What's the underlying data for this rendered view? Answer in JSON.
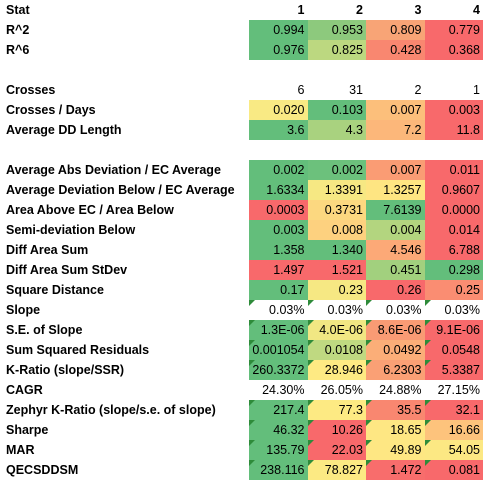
{
  "colors": {
    "green": "#6cc36f",
    "light_green": "#a6d77a",
    "yellow": "#fbe983",
    "orange": "#fbb676",
    "red": "#f8696b",
    "lt_orange": "#fdc67a"
  },
  "header": {
    "label": "Stat",
    "cols": [
      "1",
      "2",
      "3",
      "4"
    ]
  },
  "rows": [
    {
      "id": "r2",
      "label": "R^2",
      "cells": [
        {
          "v": "0.994",
          "c": "#63be7b"
        },
        {
          "v": "0.953",
          "c": "#8dc97d"
        },
        {
          "v": "0.809",
          "c": "#f8a476"
        },
        {
          "v": "0.779",
          "c": "#f8696b"
        }
      ]
    },
    {
      "id": "r6",
      "label": "R^6",
      "cells": [
        {
          "v": "0.976",
          "c": "#63be7b"
        },
        {
          "v": "0.825",
          "c": "#bcd880"
        },
        {
          "v": "0.428",
          "c": "#f98770"
        },
        {
          "v": "0.368",
          "c": "#f8696b"
        }
      ]
    },
    {
      "id": "blank1",
      "label": "",
      "cells": [
        {
          "v": ""
        },
        {
          "v": ""
        },
        {
          "v": ""
        },
        {
          "v": ""
        }
      ]
    },
    {
      "id": "crosses",
      "label": "Crosses",
      "cells": [
        {
          "v": "6"
        },
        {
          "v": "31"
        },
        {
          "v": "2"
        },
        {
          "v": "1"
        }
      ]
    },
    {
      "id": "crosses_days",
      "label": "Crosses / Days",
      "cells": [
        {
          "v": "0.020",
          "c": "#f9ea84"
        },
        {
          "v": "0.103",
          "c": "#63be7b"
        },
        {
          "v": "0.007",
          "c": "#fcbf7b"
        },
        {
          "v": "0.003",
          "c": "#f8696b"
        }
      ]
    },
    {
      "id": "avg_dd_len",
      "label": "Average DD Length",
      "cells": [
        {
          "v": "3.6",
          "c": "#63be7b"
        },
        {
          "v": "4.3",
          "c": "#a9d27f"
        },
        {
          "v": "7.2",
          "c": "#fcb77a"
        },
        {
          "v": "11.8",
          "c": "#f8696b"
        }
      ]
    },
    {
      "id": "blank2",
      "label": "",
      "cells": [
        {
          "v": ""
        },
        {
          "v": ""
        },
        {
          "v": ""
        },
        {
          "v": ""
        }
      ]
    },
    {
      "id": "avg_abs_dev",
      "label": "Average Abs Deviation  / EC Average",
      "cells": [
        {
          "v": "0.002",
          "c": "#63be7b"
        },
        {
          "v": "0.002",
          "c": "#6cc17c"
        },
        {
          "v": "0.007",
          "c": "#fa9c74"
        },
        {
          "v": "0.011",
          "c": "#f8696b"
        }
      ]
    },
    {
      "id": "avg_dev_below",
      "label": "Average Deviation Below / EC Average",
      "cells": [
        {
          "v": "1.6334",
          "c": "#63be7b"
        },
        {
          "v": "1.3391",
          "c": "#f6e883"
        },
        {
          "v": "1.3257",
          "c": "#fee582"
        },
        {
          "v": "0.9607",
          "c": "#f8696b"
        }
      ]
    },
    {
      "id": "area_ratio",
      "label": "Area Above EC / Area Below",
      "cells": [
        {
          "v": "0.0003",
          "c": "#f8696b"
        },
        {
          "v": "0.3731",
          "c": "#fcd880"
        },
        {
          "v": "7.6139",
          "c": "#63be7b"
        },
        {
          "v": "0.0000",
          "c": "#f8696b"
        }
      ]
    },
    {
      "id": "semi_dev",
      "label": "Semi-deviation Below",
      "cells": [
        {
          "v": "0.003",
          "c": "#63be7b"
        },
        {
          "v": "0.008",
          "c": "#fdd17f"
        },
        {
          "v": "0.004",
          "c": "#b3d57f"
        },
        {
          "v": "0.014",
          "c": "#f8696b"
        }
      ]
    },
    {
      "id": "diff_area",
      "label": "Diff Area Sum",
      "cells": [
        {
          "v": "1.358",
          "c": "#63be7b"
        },
        {
          "v": "1.340",
          "c": "#63be7b"
        },
        {
          "v": "4.546",
          "c": "#fca977"
        },
        {
          "v": "6.788",
          "c": "#f8696b"
        }
      ]
    },
    {
      "id": "diff_area_sd",
      "label": "Diff Area Sum StDev",
      "cells": [
        {
          "v": "1.497",
          "c": "#f8696b"
        },
        {
          "v": "1.521",
          "c": "#f8696b"
        },
        {
          "v": "0.451",
          "c": "#a2d07e"
        },
        {
          "v": "0.298",
          "c": "#63be7b"
        }
      ]
    },
    {
      "id": "sq_dist",
      "label": "Square Distance",
      "cells": [
        {
          "v": "0.17",
          "c": "#63be7b"
        },
        {
          "v": "0.23",
          "c": "#f6e883"
        },
        {
          "v": "0.26",
          "c": "#f8696b"
        },
        {
          "v": "0.25",
          "c": "#fa8d72"
        }
      ]
    },
    {
      "id": "slope",
      "label": "Slope",
      "flag": true,
      "cells": [
        {
          "v": "0.03%"
        },
        {
          "v": "0.03%"
        },
        {
          "v": "0.03%"
        },
        {
          "v": "0.03%"
        }
      ]
    },
    {
      "id": "se_slope",
      "label": "S.E. of Slope",
      "flag": true,
      "cells": [
        {
          "v": "1.3E-06",
          "c": "#63be7b"
        },
        {
          "v": "4.0E-06",
          "c": "#f1e783"
        },
        {
          "v": "8.6E-06",
          "c": "#f99b74"
        },
        {
          "v": "9.1E-06",
          "c": "#f8696b"
        }
      ]
    },
    {
      "id": "ssr",
      "label": "Sum Squared Residuals",
      "flag": true,
      "cells": [
        {
          "v": "0.001054",
          "c": "#63be7b"
        },
        {
          "v": "0.0108",
          "c": "#bfd981"
        },
        {
          "v": "0.0492",
          "c": "#fbae78"
        },
        {
          "v": "0.0548",
          "c": "#f8696b"
        }
      ]
    },
    {
      "id": "k_ratio",
      "label": "K-Ratio (slope/SSR)",
      "flag": true,
      "cells": [
        {
          "v": "260.3372",
          "c": "#63be7b"
        },
        {
          "v": "28.946",
          "c": "#feea83"
        },
        {
          "v": "6.2303",
          "c": "#faa075"
        },
        {
          "v": "5.3387",
          "c": "#f8696b"
        }
      ]
    },
    {
      "id": "cagr",
      "label": "CAGR",
      "cells": [
        {
          "v": "24.30%"
        },
        {
          "v": "26.05%"
        },
        {
          "v": "24.88%"
        },
        {
          "v": "27.15%"
        }
      ]
    },
    {
      "id": "zephyr",
      "label": "Zephyr K-Ratio (slope/s.e. of slope)",
      "flag": true,
      "cells": [
        {
          "v": "217.4",
          "c": "#63be7b"
        },
        {
          "v": "77.3",
          "c": "#fdea83"
        },
        {
          "v": "35.5",
          "c": "#f98770"
        },
        {
          "v": "32.1",
          "c": "#f8696b"
        }
      ]
    },
    {
      "id": "sharpe",
      "label": "Sharpe",
      "flag": true,
      "cells": [
        {
          "v": "46.32",
          "c": "#63be7b"
        },
        {
          "v": "10.26",
          "c": "#f8696b"
        },
        {
          "v": "18.65",
          "c": "#fee783"
        },
        {
          "v": "16.66",
          "c": "#fdc37c"
        }
      ]
    },
    {
      "id": "mar",
      "label": "MAR",
      "flag": true,
      "cells": [
        {
          "v": "135.79",
          "c": "#63be7b"
        },
        {
          "v": "22.03",
          "c": "#f8696b"
        },
        {
          "v": "49.89",
          "c": "#fee783"
        },
        {
          "v": "54.05",
          "c": "#fce883"
        }
      ]
    },
    {
      "id": "qecsddsm",
      "label": "QECSDDSM",
      "flag": true,
      "cells": [
        {
          "v": "238.116",
          "c": "#63be7b"
        },
        {
          "v": "78.827",
          "c": "#fcea83"
        },
        {
          "v": "1.472",
          "c": "#f86d6c"
        },
        {
          "v": "0.081",
          "c": "#f8696b"
        }
      ]
    }
  ]
}
